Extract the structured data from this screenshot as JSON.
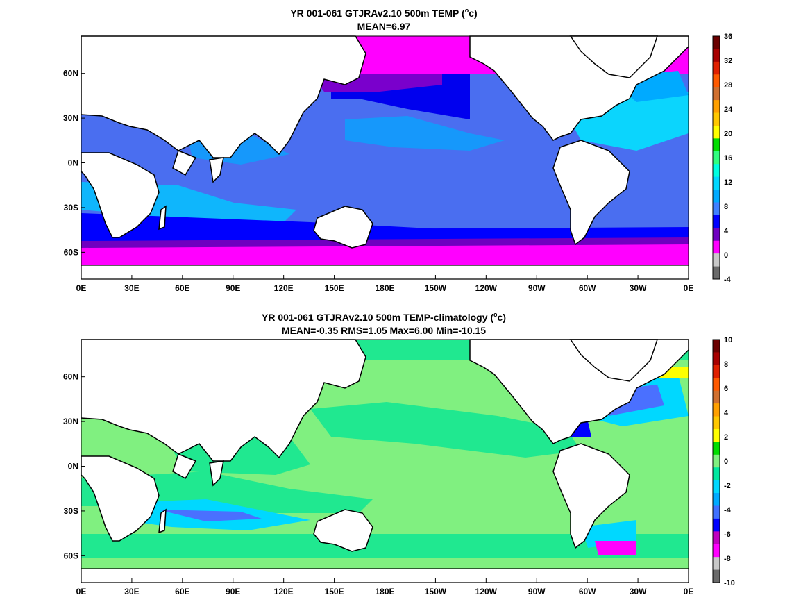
{
  "chart_data": [
    {
      "type": "heatmap",
      "title_line1": "YR 001-061 GTJRAv2.10 500m TEMP (",
      "title_unit_sup": "o",
      "title_unit_tail": "c)",
      "title_line2": "MEAN=6.97",
      "x_ticks": [
        "0E",
        "30E",
        "60E",
        "90E",
        "120E",
        "150E",
        "180E",
        "150W",
        "120W",
        "90W",
        "60W",
        "30W",
        "0E"
      ],
      "y_ticks": [
        "60N",
        "30N",
        "0N",
        "30S",
        "60S"
      ],
      "y_tick_lats": [
        60,
        30,
        0,
        -30,
        -60
      ],
      "xlim": [
        0,
        360
      ],
      "ylim": [
        -78,
        85
      ],
      "colorbar": {
        "ticks": [
          "36",
          "32",
          "28",
          "24",
          "20",
          "16",
          "12",
          "8",
          "4",
          "0",
          "-4"
        ],
        "colors": [
          "#6b0000",
          "#a80000",
          "#e02000",
          "#ff5a00",
          "#d07030",
          "#ffa000",
          "#ffc800",
          "#ffff00",
          "#00dd00",
          "#30ff80",
          "#00ffe0",
          "#00d8ff",
          "#00aaff",
          "#4080ff",
          "#0000ff",
          "#7000c0",
          "#ff00ff",
          "#c8c8c8",
          "#6a6a6a"
        ]
      },
      "field_description": "500 m ocean temperature; warm subtropical gyres 8-16, cold Southern Ocean 0-4"
    },
    {
      "type": "heatmap",
      "title_line1": "YR 001-061 GTJRAv2.10 500m TEMP-climatology (",
      "title_unit_sup": "o",
      "title_unit_tail": "c)",
      "title_line2": "MEAN=-0.35   RMS=1.05   Max=6.00   Min=-10.15",
      "x_ticks": [
        "0E",
        "30E",
        "60E",
        "90E",
        "120E",
        "150E",
        "180E",
        "150W",
        "120W",
        "90W",
        "60W",
        "30W",
        "0E"
      ],
      "y_ticks": [
        "60N",
        "30N",
        "0N",
        "30S",
        "60S"
      ],
      "y_tick_lats": [
        60,
        30,
        0,
        -30,
        -60
      ],
      "xlim": [
        0,
        360
      ],
      "ylim": [
        -78,
        85
      ],
      "colorbar": {
        "ticks": [
          "10",
          "8",
          "6",
          "4",
          "2",
          "0",
          "-2",
          "-4",
          "-6",
          "-8",
          "-10"
        ],
        "colors": [
          "#6b0000",
          "#a80000",
          "#e02000",
          "#ff5a00",
          "#d07030",
          "#ffa000",
          "#ffc800",
          "#ffff00",
          "#00dd00",
          "#80f080",
          "#00e8a0",
          "#00d8ff",
          "#00aaff",
          "#4070ff",
          "#0000ff",
          "#c000c0",
          "#ff00ff",
          "#c8c8c8",
          "#6a6a6a"
        ]
      },
      "field_description": "difference from climatology; mostly 0 to -2 with negative anomalies in western boundary currents"
    }
  ]
}
